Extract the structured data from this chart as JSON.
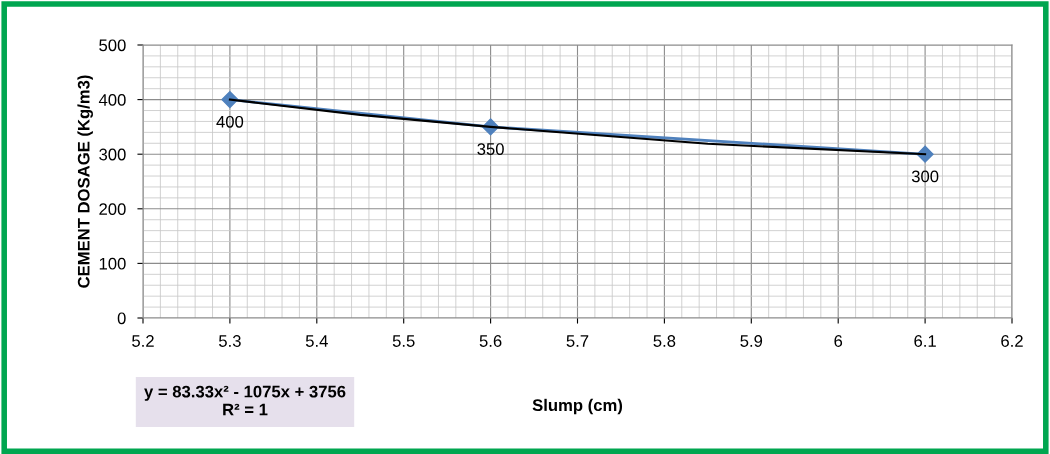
{
  "chart_data": {
    "type": "line",
    "xlabel": "Slump (cm)",
    "ylabel": "CEMENT DOSAGE (Kg/m3)",
    "xlim": [
      5.2,
      6.2
    ],
    "xticks": [
      5.2,
      5.3,
      5.4,
      5.5,
      5.6,
      5.7,
      5.8,
      5.9,
      {
        "value": 6.0,
        "label": "6"
      },
      6.1,
      6.2
    ],
    "ylim": [
      0,
      500
    ],
    "yticks": [
      0,
      100,
      200,
      300,
      400,
      500
    ],
    "grid": true,
    "legend": false,
    "series": [
      {
        "type": "line",
        "color": "#4f81bd",
        "marker": "diamond",
        "x": [
          5.3,
          5.6,
          6.1
        ],
        "values": [
          400,
          350,
          300
        ],
        "value_labels": [
          "400",
          "350",
          "300"
        ]
      },
      {
        "type": "line",
        "color": "#000000",
        "marker": "none",
        "x": [
          5.3,
          5.45,
          5.6,
          5.85,
          6.1
        ],
        "values": [
          400,
          372,
          350,
          319,
          300
        ]
      }
    ],
    "annotations": [
      "y = 83.33x² - 1075x + 3756\nR² = 1"
    ]
  }
}
